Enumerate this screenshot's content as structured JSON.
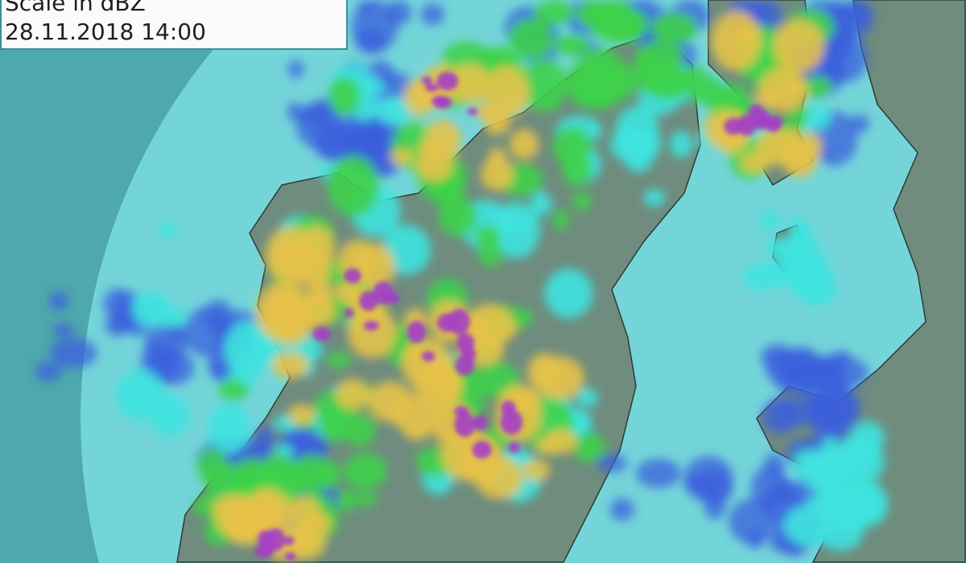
{
  "legend": {
    "scale_label": "Scale in dBZ",
    "timestamp": "28.11.2018 14:00"
  },
  "colors": {
    "outside_radar": "#4fa8ad",
    "radar_range": "#74d5d9",
    "land": "#6f8c7e",
    "rain_light_blue": "#3b5fdc",
    "rain_cyan": "#3fe3df",
    "rain_green": "#3ed24a",
    "rain_yellow": "#e6c24a",
    "rain_purple": "#a43fc4"
  }
}
